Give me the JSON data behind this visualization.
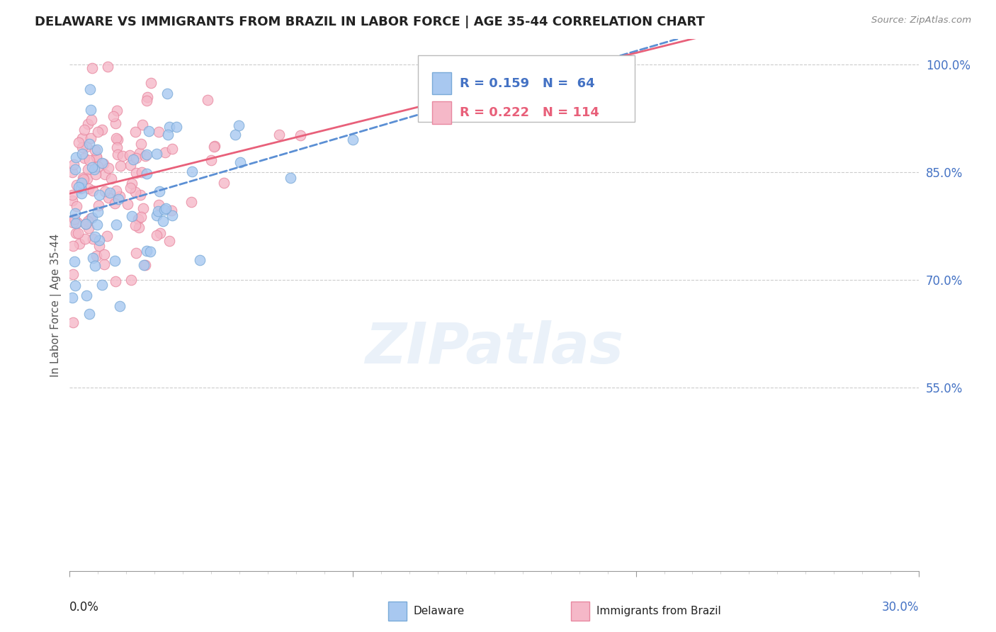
{
  "title": "DELAWARE VS IMMIGRANTS FROM BRAZIL IN LABOR FORCE | AGE 35-44 CORRELATION CHART",
  "source": "Source: ZipAtlas.com",
  "ylabel": "In Labor Force | Age 35-44",
  "legend_label_1": "Delaware",
  "legend_label_2": "Immigrants from Brazil",
  "r1": 0.159,
  "n1": 64,
  "r2": 0.222,
  "n2": 114,
  "color1": "#a8c8f0",
  "color2": "#f5b8c8",
  "edge_color1": "#7aaad8",
  "edge_color2": "#e888a0",
  "line_color1": "#5b8fd4",
  "line_color2": "#e8607a",
  "bg_color": "#ffffff",
  "grid_color": "#cccccc",
  "xlim": [
    0.0,
    0.3
  ],
  "ylim": [
    0.295,
    1.035
  ],
  "ytick_vals": [
    0.55,
    0.7,
    0.85,
    1.0
  ],
  "ytick_labels": [
    "55.0%",
    "70.0%",
    "85.0%",
    "100.0%"
  ],
  "watermark_text": "ZIPatlas",
  "title_fontsize": 13,
  "axis_label_fontsize": 11,
  "tick_fontsize": 12
}
